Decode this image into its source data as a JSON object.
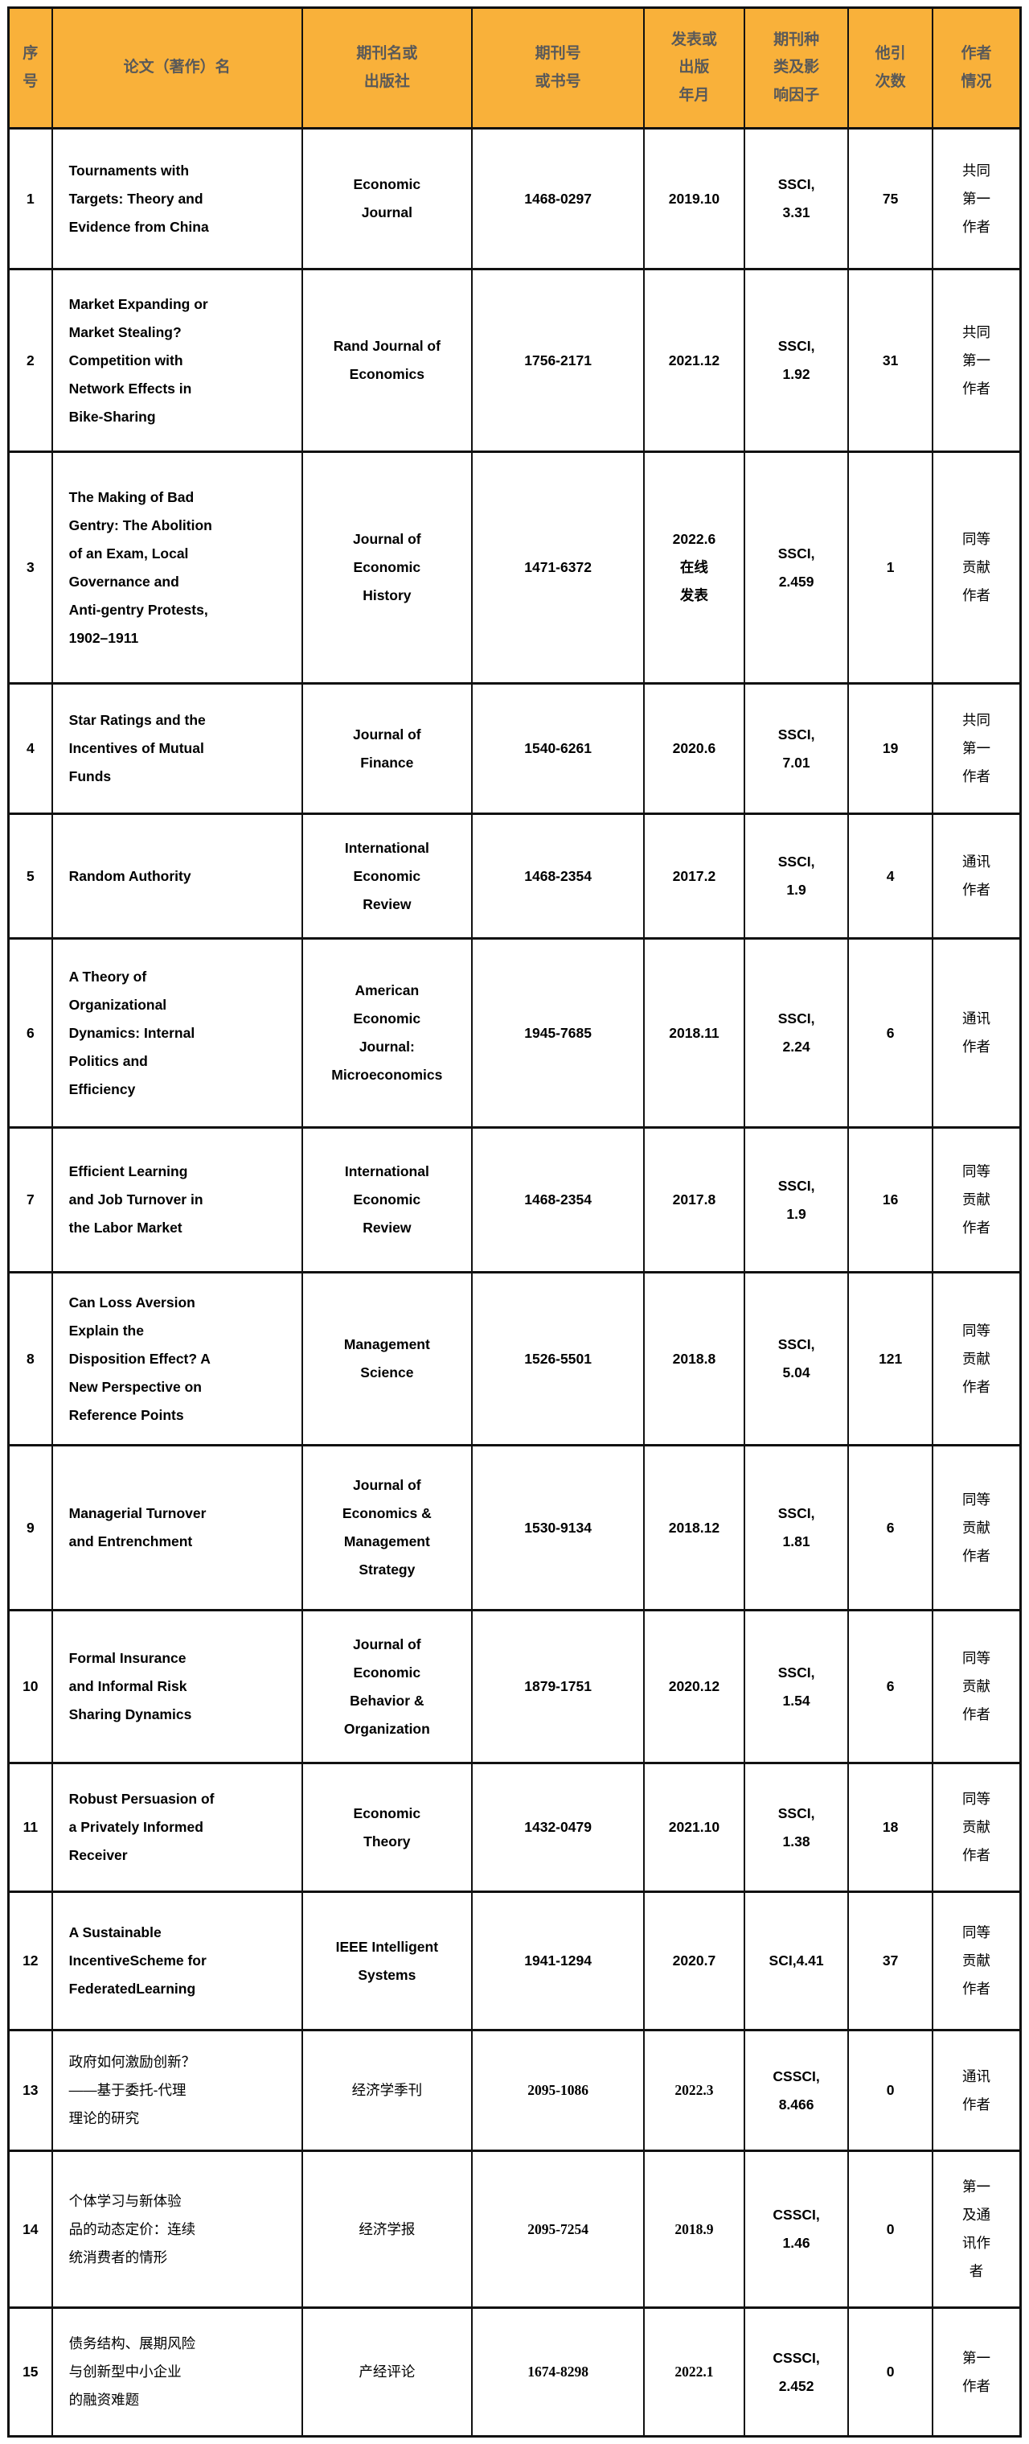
{
  "colors": {
    "header_bg": "#F9B13A",
    "header_text": "#595959",
    "border": "#111111"
  },
  "table": {
    "headers": {
      "no": "序\n号",
      "title": "论文（著作）名",
      "journal": "期刊名或\n出版社",
      "issn": "期刊号\n或书号",
      "date": "发表或\n出版\n年月",
      "index": "期刊种\n类及影\n响因子",
      "citations": "他引\n次数",
      "author": "作者\n情况"
    },
    "rows": [
      {
        "no": "1",
        "title": "Tournaments with\nTargets: Theory and\nEvidence from China",
        "journal": "Economic\nJournal",
        "issn": "1468-0297",
        "date": "2019.10",
        "index": "SSCI,\n3.31",
        "citations": "75",
        "author": "共同\n第一\n作者"
      },
      {
        "no": "2",
        "title": "Market Expanding or\nMarket Stealing?\nCompetition with\nNetwork Effects in\nBike-Sharing",
        "journal": "Rand Journal of\nEconomics",
        "issn": "1756-2171",
        "date": "2021.12",
        "index": "SSCI,\n1.92",
        "citations": "31",
        "author": "共同\n第一\n作者"
      },
      {
        "no": "3",
        "title": "The Making of Bad\nGentry: The Abolition\nof an Exam, Local\nGovernance and\nAnti-gentry Protests,\n1902–1911",
        "journal": "Journal of\nEconomic\nHistory",
        "issn": "1471-6372",
        "date": "2022.6\n在线\n发表",
        "index": "SSCI,\n2.459",
        "citations": "1",
        "author": "同等\n贡献\n作者"
      },
      {
        "no": "4",
        "title": "Star Ratings and the\nIncentives of Mutual\nFunds",
        "journal": "Journal of\nFinance",
        "issn": "1540-6261",
        "date": "2020.6",
        "index": "SSCI,\n7.01",
        "citations": "19",
        "author": "共同\n第一\n作者"
      },
      {
        "no": "5",
        "title": "Random Authority",
        "journal": "International\nEconomic\nReview",
        "issn": "1468-2354",
        "date": "2017.2",
        "index": "SSCI,\n1.9",
        "citations": "4",
        "author": "通讯\n作者"
      },
      {
        "no": "6",
        "title": "A Theory of\nOrganizational\nDynamics: Internal\nPolitics and\nEfficiency",
        "journal": "American\nEconomic\nJournal:\nMicroeconomics",
        "issn": "1945-7685",
        "date": "2018.11",
        "index": "SSCI,\n2.24",
        "citations": "6",
        "author": "通讯\n作者"
      },
      {
        "no": "7",
        "title": "Efficient Learning\nand Job Turnover in\nthe Labor Market",
        "journal": "International\nEconomic\nReview",
        "issn": "1468-2354",
        "date": "2017.8",
        "index": "SSCI,\n1.9",
        "citations": "16",
        "author": "同等\n贡献\n作者"
      },
      {
        "no": "8",
        "title": "Can Loss Aversion\nExplain the\nDisposition Effect? A\nNew Perspective on\nReference Points",
        "journal": "Management\nScience",
        "issn": "1526-5501",
        "date": "2018.8",
        "index": "SSCI,\n5.04",
        "citations": "121",
        "author": "同等\n贡献\n作者"
      },
      {
        "no": "9",
        "title": "Managerial Turnover\nand Entrenchment",
        "journal": "Journal of\nEconomics &\nManagement\nStrategy",
        "issn": "1530-9134",
        "date": "2018.12",
        "index": "SSCI,\n1.81",
        "citations": "6",
        "author": "同等\n贡献\n作者"
      },
      {
        "no": "10",
        "title": "Formal Insurance\nand Informal Risk\nSharing Dynamics",
        "journal": "Journal of\nEconomic\nBehavior &\nOrganization",
        "issn": "1879-1751",
        "date": "2020.12",
        "index": "SSCI,\n1.54",
        "citations": "6",
        "author": "同等\n贡献\n作者"
      },
      {
        "no": "11",
        "title": "Robust Persuasion of\na Privately Informed\nReceiver",
        "journal": "Economic\nTheory",
        "issn": "1432-0479",
        "date": "2021.10",
        "index": "SSCI,\n1.38",
        "citations": "18",
        "author": "同等\n贡献\n作者"
      },
      {
        "no": "12",
        "title": "A Sustainable\nIncentiveScheme for\nFederatedLearning",
        "journal": "IEEE Intelligent\nSystems",
        "issn": "1941-1294",
        "date": "2020.7",
        "index": "SCI,4.41",
        "citations": "37",
        "author": "同等\n贡献\n作者"
      },
      {
        "no": "13",
        "title": "政府如何激励创新？\n——基于委托-代理\n理论的研究",
        "journal": "经济学季刊",
        "issn": "2095-1086",
        "date": "2022.3",
        "index": "CSSCI,\n8.466",
        "citations": "0",
        "author": "通讯\n作者"
      },
      {
        "no": "14",
        "title": "个体学习与新体验\n品的动态定价：连续\n统消费者的情形",
        "journal": "经济学报",
        "issn": "2095-7254",
        "date": "2018.9",
        "index": "CSSCI,\n1.46",
        "citations": "0",
        "author": "第一\n及通\n讯作\n者"
      },
      {
        "no": "15",
        "title": "债务结构、展期风险\n与创新型中小企业\n的融资难题",
        "journal": "产经评论",
        "issn": "1674-8298",
        "date": "2022.1",
        "index": "CSSCI,\n2.452",
        "citations": "0",
        "author": "第一\n作者"
      }
    ]
  }
}
